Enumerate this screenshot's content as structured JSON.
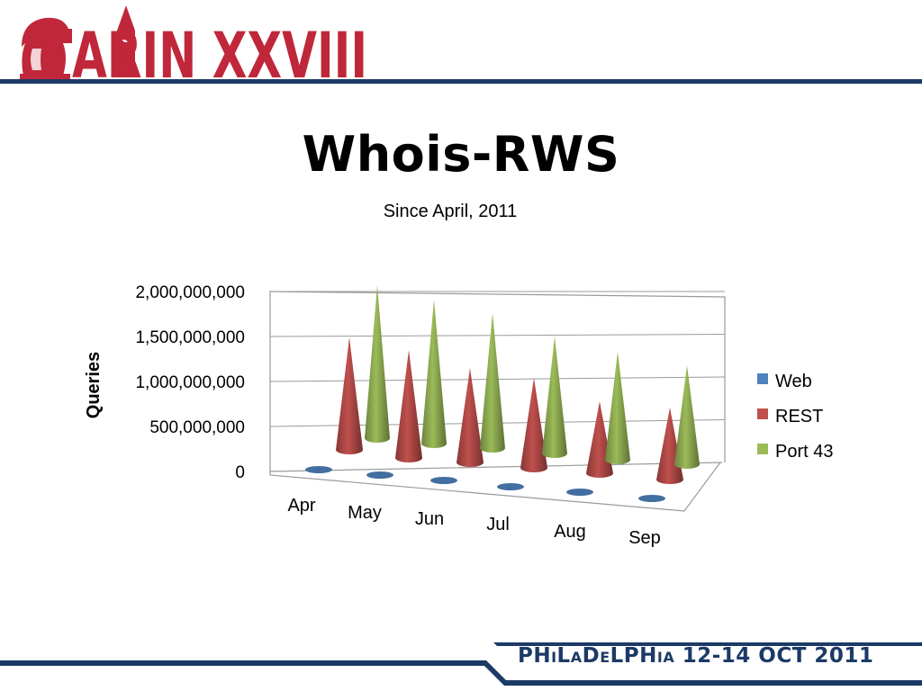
{
  "logo": {
    "text": "ARIN XXVIII",
    "colors": {
      "red": "#c0273a",
      "navy": "#1c3a66"
    }
  },
  "title": "Whois-RWS",
  "subtitle": "Since April, 2011",
  "footer": {
    "text": "PHiLaDeLPHia 12-14 OCT 2011"
  },
  "chart_data": {
    "type": "bar",
    "style": "3d-cone",
    "categories": [
      "Apr",
      "May",
      "Jun",
      "Jul",
      "Aug",
      "Sep"
    ],
    "y_ticks": [
      "0",
      "500,000,000",
      "1,000,000,000",
      "1,500,000,000",
      "2,000,000,000"
    ],
    "ylabel": "Queries",
    "ylim": [
      0,
      2000000000
    ],
    "grid": true,
    "legend": "right",
    "series": [
      {
        "name": "Web",
        "color": "#4f81bd",
        "values": [
          0,
          0,
          0,
          0,
          0,
          0
        ]
      },
      {
        "name": "REST",
        "color": "#c0504d",
        "values": [
          1250000000,
          1200000000,
          1050000000,
          1000000000,
          800000000,
          800000000
        ]
      },
      {
        "name": "Port 43",
        "color": "#9bbb59",
        "values": [
          1700000000,
          1600000000,
          1500000000,
          1300000000,
          1200000000,
          1100000000
        ]
      }
    ]
  }
}
